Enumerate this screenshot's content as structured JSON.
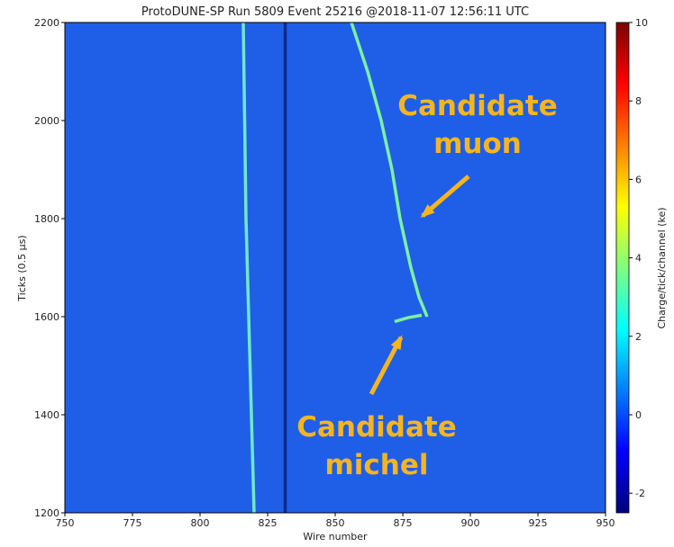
{
  "chart_data": {
    "type": "event_display",
    "title": "ProtoDUNE-SP Run 5809 Event 25216 @2018-11-07 12:56:11 UTC",
    "x_label": "Wire number",
    "y_label": "Ticks (0.5 µs)",
    "xlim": [
      750,
      950
    ],
    "ylim": [
      1200,
      2200
    ],
    "xticks": [
      750,
      775,
      800,
      825,
      850,
      875,
      900,
      925,
      950
    ],
    "yticks": [
      1200,
      1400,
      1600,
      1800,
      2000,
      2200
    ],
    "background_color": "#1f5fe8",
    "series": [
      {
        "color": "#6fe8c8",
        "x": [
          816,
          817,
          818,
          819,
          820
        ],
        "values": [
          2200,
          1800,
          1600,
          1400,
          1200
        ]
      },
      {
        "color": "#0a2a8a",
        "x": [
          831.5,
          831.5
        ],
        "values": [
          2200,
          1200
        ]
      },
      {
        "color": "#7ef0a0",
        "x": [
          856,
          862,
          867,
          871,
          874,
          878,
          881,
          884
        ],
        "values": [
          2200,
          2100,
          2000,
          1900,
          1800,
          1700,
          1640,
          1600
        ]
      },
      {
        "color": "#7ef0a0",
        "x": [
          872,
          877,
          882
        ],
        "values": [
          1590,
          1598,
          1603
        ]
      }
    ],
    "colorbar": {
      "label": "Charge/tick/channel (ke)",
      "lim": [
        -2.5,
        10
      ],
      "ticks": [
        -2,
        0,
        2,
        4,
        6,
        8,
        10
      ],
      "colors": [
        "#00007f",
        "#0000ff",
        "#007fff",
        "#00ffff",
        "#7fff7f",
        "#ffff00",
        "#ff7f00",
        "#ff0000",
        "#7f0000"
      ]
    },
    "annotation_color": "#f6b51e",
    "annotations": [
      {
        "lines": [
          "Candidate",
          "muon"
        ]
      },
      {
        "lines": [
          "Candidate",
          "michel"
        ]
      }
    ]
  }
}
